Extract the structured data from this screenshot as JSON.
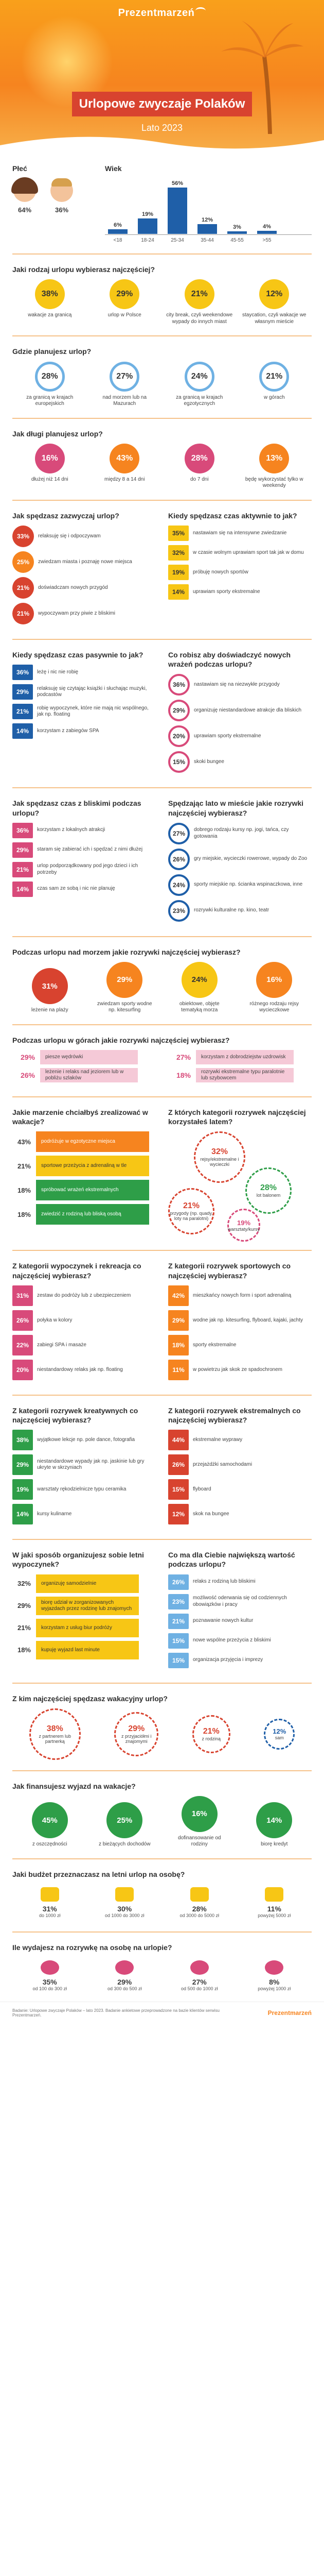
{
  "brand": "Prezentmarzeń",
  "title": "Urlopowe zwyczaje Polaków",
  "subtitle": "Lato 2023",
  "gender": {
    "title": "Płeć",
    "female": "64%",
    "male": "36%"
  },
  "age": {
    "title": "Wiek",
    "categories": [
      "<18",
      "18-24",
      "25-34",
      "35-44",
      "45-55",
      ">55"
    ],
    "values": [
      6,
      19,
      56,
      12,
      3,
      4
    ],
    "labels": [
      "6%",
      "19%",
      "56%",
      "12%",
      "3%",
      "4%"
    ]
  },
  "q1": {
    "title": "Jaki rodzaj urlopu wybierasz najczęściej?",
    "items": [
      {
        "v": "38%",
        "l": "wakacje za granicą"
      },
      {
        "v": "29%",
        "l": "urlop w Polsce"
      },
      {
        "v": "21%",
        "l": "city break, czyli weekendowe wypady do innych miast"
      },
      {
        "v": "12%",
        "l": "staycation, czyli wakacje we własnym mieście"
      }
    ]
  },
  "q2": {
    "title": "Gdzie planujesz urlop?",
    "items": [
      {
        "v": "28%",
        "l": "za granicą w krajach europejskich"
      },
      {
        "v": "27%",
        "l": "nad morzem lub na Mazurach"
      },
      {
        "v": "24%",
        "l": "za granicą w krajach egzotycznych"
      },
      {
        "v": "21%",
        "l": "w górach"
      }
    ]
  },
  "q3": {
    "title": "Jak długi planujesz urlop?",
    "items": [
      {
        "v": "16%",
        "l": "dłużej niż 14 dni"
      },
      {
        "v": "43%",
        "l": "między 8 a 14 dni"
      },
      {
        "v": "28%",
        "l": "do 7 dni"
      },
      {
        "v": "13%",
        "l": "będę wykorzystać tylko w weekendy"
      }
    ]
  },
  "q4": {
    "title": "Jak spędzasz zazwyczaj urlop?",
    "items": [
      {
        "v": "33%",
        "l": "relaksuję się i odpoczywam"
      },
      {
        "v": "25%",
        "l": "zwiedzam miasta i poznaję nowe miejsca"
      },
      {
        "v": "21%",
        "l": "doświadczam nowych przygód"
      },
      {
        "v": "21%",
        "l": "wypoczywam przy piwie z bliskimi"
      }
    ]
  },
  "q5": {
    "title": "Kiedy spędzasz czas aktywnie to jak?",
    "items": [
      {
        "v": "35%",
        "l": "nastawiam się na intensywne zwiedzanie"
      },
      {
        "v": "32%",
        "l": "w czasie wolnym uprawiam sport tak jak w domu"
      },
      {
        "v": "19%",
        "l": "próbuję nowych sportów"
      },
      {
        "v": "14%",
        "l": "uprawiam sporty ekstremalne"
      }
    ]
  },
  "q6": {
    "title": "Kiedy spędzasz czas pasywnie to jak?",
    "items": [
      {
        "v": "36%",
        "l": "leżę i nic nie robię"
      },
      {
        "v": "29%",
        "l": "relaksuję się czytając książki i słuchając muzyki, podcastów"
      },
      {
        "v": "21%",
        "l": "robię wypoczynek, które nie mają nic wspólnego, jak np. floating"
      },
      {
        "v": "14%",
        "l": "korzystam z zabiegów SPA"
      }
    ]
  },
  "q7": {
    "title": "Co robisz aby doświadczyć nowych wrażeń podczas urlopu?",
    "items": [
      {
        "v": "36%",
        "l": "nastawiam się na niezwykłe przygody"
      },
      {
        "v": "29%",
        "l": "organizuję niestandardowe atrakcje dla bliskich"
      },
      {
        "v": "20%",
        "l": "uprawiam sporty ekstremalne"
      },
      {
        "v": "15%",
        "l": "skoki bungee"
      }
    ]
  },
  "q8": {
    "title": "Jak spędzasz czas z bliskimi podczas urlopu?",
    "items": [
      {
        "v": "36%",
        "l": "korzystam z lokalnych atrakcji"
      },
      {
        "v": "29%",
        "l": "staram się zabierać ich i spędzać z nimi dłużej"
      },
      {
        "v": "21%",
        "l": "urlop podporządkowany pod jego dzieci i ich potrzeby"
      },
      {
        "v": "14%",
        "l": "czas sam ze sobą i nic nie planuję"
      }
    ]
  },
  "q9": {
    "title": "Spędzając lato w mieście jakie rozrywki najczęściej wybierasz?",
    "items": [
      {
        "v": "27%",
        "l": "dobrego rodzaju kursy np. jogi, tańca, czy gotowania"
      },
      {
        "v": "26%",
        "l": "gry miejskie, wycieczki rowerowe, wypady do Zoo"
      },
      {
        "v": "24%",
        "l": "sporty miejskie np. ścianka wspinaczkowa, inne"
      },
      {
        "v": "23%",
        "l": "rozrywki kulturalne np. kino, teatr"
      }
    ]
  },
  "q10": {
    "title": "Podczas urlopu nad morzem jakie rozrywki najczęściej wybierasz?",
    "items": [
      {
        "v": "31%",
        "l": "leżenie na plaży"
      },
      {
        "v": "29%",
        "l": "zwiedzam sporty wodne np. kitesurfing"
      },
      {
        "v": "24%",
        "l": "obiektowe, objęte tematyką morza"
      },
      {
        "v": "16%",
        "l": "różnego rodzaju rejsy wycieczkowe"
      }
    ]
  },
  "q11": {
    "title": "Podczas urlopu w górach jakie rozrywki najczęściej wybierasz?",
    "items": [
      {
        "v": "29%",
        "l": "piesze wędrówki"
      },
      {
        "v": "26%",
        "l": "leżenie i relaks nad jeziorem lub w pobliżu szlaków"
      },
      {
        "v": "27%",
        "l": "korzystam z dobrodziejstw uzdrowisk"
      },
      {
        "v": "18%",
        "l": "rozrywki ekstremalne typu paralotnie lub szybowcem"
      }
    ]
  },
  "q12": {
    "title": "Jakie marzenie chciałbyś zrealizować w wakacje?",
    "items": [
      {
        "v": "43%",
        "l": "podróżuje w egzotyczne miejsca"
      },
      {
        "v": "21%",
        "l": "sportowe przeżycia z adrenaliną w tle"
      },
      {
        "v": "18%",
        "l": "spróbować wrażeń ekstremalnych"
      },
      {
        "v": "18%",
        "l": "zwiedzić z rodziną lub bliską osobą"
      }
    ]
  },
  "q13": {
    "title": "Z których kategorii rozrywek najczęściej korzystałeś latem?",
    "items": [
      {
        "v": "32%",
        "l": "rejsy/ekstremalne i wycieczki"
      },
      {
        "v": "28%",
        "l": "lot balonem"
      },
      {
        "v": "21%",
        "l": "przygody (np. quady, loty na paralotni)"
      },
      {
        "v": "19%",
        "l": "warsztaty/kursy"
      }
    ]
  },
  "q14": {
    "title": "Z kategorii wypoczynek i rekreacja co najczęściej wybierasz?",
    "items": [
      {
        "v": "31%",
        "l": "zestaw do podróży lub z ubezpieczeniem"
      },
      {
        "v": "26%",
        "l": "połyka w kolory"
      },
      {
        "v": "22%",
        "l": "zabiegi SPA i masaże"
      },
      {
        "v": "20%",
        "l": "niestandardowy relaks jak np. floating"
      }
    ]
  },
  "q15": {
    "title": "Z kategorii rozrywek sportowych co najczęściej wybierasz?",
    "items": [
      {
        "v": "42%",
        "l": "mieszkańcy nowych form i sport adrenaliną"
      },
      {
        "v": "29%",
        "l": "wodne jak np. kitesurfing, flyboard, kajaki, jachty"
      },
      {
        "v": "18%",
        "l": "sporty ekstremalne"
      },
      {
        "v": "11%",
        "l": "w powietrzu jak skok ze spadochronem"
      }
    ]
  },
  "q16": {
    "title": "Z kategorii rozrywek kreatywnych co najczęściej wybierasz?",
    "items": [
      {
        "v": "38%",
        "l": "wyjątkowe lekcje np. pole dance, fotografia"
      },
      {
        "v": "29%",
        "l": "niestandardowe wypady jak np. jaskinie lub gry ukryte w skrzyniach"
      },
      {
        "v": "19%",
        "l": "warsztaty rękodzielnicze typu ceramika"
      },
      {
        "v": "14%",
        "l": "kursy kulinarne"
      }
    ]
  },
  "q17": {
    "title": "Z kategorii rozrywek ekstremalnych co najczęściej wybierasz?",
    "items": [
      {
        "v": "44%",
        "l": "ekstremalne wyprawy"
      },
      {
        "v": "26%",
        "l": "przejażdżki samochodami"
      },
      {
        "v": "15%",
        "l": "flyboard"
      },
      {
        "v": "12%",
        "l": "skok na bungee"
      }
    ]
  },
  "q18": {
    "title": "W jaki sposób organizujesz sobie letni wypoczynek?",
    "items": [
      {
        "v": "32%",
        "l": "organizuję samodzielnie"
      },
      {
        "v": "29%",
        "l": "biorę udział w zorganizowanych wyjazdach przez rodzinę lub znajomych"
      },
      {
        "v": "21%",
        "l": "korzystam z usług biur podróży"
      },
      {
        "v": "18%",
        "l": "kupuję wyjazd last minute"
      }
    ]
  },
  "q19": {
    "title": "Co ma dla Ciebie największą wartość podczas urlopu?",
    "items": [
      {
        "v": "26%",
        "l": "relaks z rodziną lub bliskimi"
      },
      {
        "v": "23%",
        "l": "możliwość oderwania się od codziennych obowiązków i pracy"
      },
      {
        "v": "21%",
        "l": "poznawanie nowych kultur"
      },
      {
        "v": "15%",
        "l": "nowe wspólne przeżycia z bliskimi"
      },
      {
        "v": "15%",
        "l": "organizacja przyjęcia i imprezy"
      }
    ]
  },
  "q20": {
    "title": "Z kim najczęściej spędzasz wakacyjny urlop?",
    "items": [
      {
        "v": "38%",
        "l": "z partnerem lub partnerką"
      },
      {
        "v": "29%",
        "l": "z przyjaciółmi i znajomymi"
      },
      {
        "v": "21%",
        "l": "z rodziną"
      },
      {
        "v": "12%",
        "l": "sam"
      }
    ]
  },
  "q21": {
    "title": "Jak finansujesz wyjazd na wakacje?",
    "items": [
      {
        "v": "45%",
        "l": "z oszczędności"
      },
      {
        "v": "25%",
        "l": "z bieżących dochodów"
      },
      {
        "v": "16%",
        "l": "dofinansowanie od rodziny"
      },
      {
        "v": "14%",
        "l": "biorę kredyt"
      }
    ]
  },
  "q22": {
    "title": "Jaki budżet przeznaczasz na letni urlop na osobę?",
    "items": [
      {
        "v": "31%",
        "l": "do 1000 zł"
      },
      {
        "v": "30%",
        "l": "od 1000 do 3000 zł"
      },
      {
        "v": "28%",
        "l": "od 3000 do 5000 zł"
      },
      {
        "v": "11%",
        "l": "powyżej 5000 zł"
      }
    ]
  },
  "q23": {
    "title": "Ile wydajesz na rozrywkę na osobę na urlopie?",
    "items": [
      {
        "v": "35%",
        "l": "od 100 do 300 zł"
      },
      {
        "v": "29%",
        "l": "od 300 do 500 zł"
      },
      {
        "v": "27%",
        "l": "od 500 do 1000 zł"
      },
      {
        "v": "8%",
        "l": "powyżej 1000 zł"
      }
    ]
  },
  "footer": {
    "note": "Badanie: Urlopowe zwyczaje Polaków – lato 2023. Badanie ankietowe przeprowadzone na bazie klientów serwisu Prezentmarzeń.",
    "logo": "Prezentmarzeń"
  },
  "colors": {
    "orange": "#f6841f",
    "red": "#d8432f",
    "blue": "#1f5fa8",
    "lightblue": "#6fb1e3",
    "green": "#2e9e48",
    "yellow": "#f7c615",
    "pink": "#d84a7a"
  }
}
